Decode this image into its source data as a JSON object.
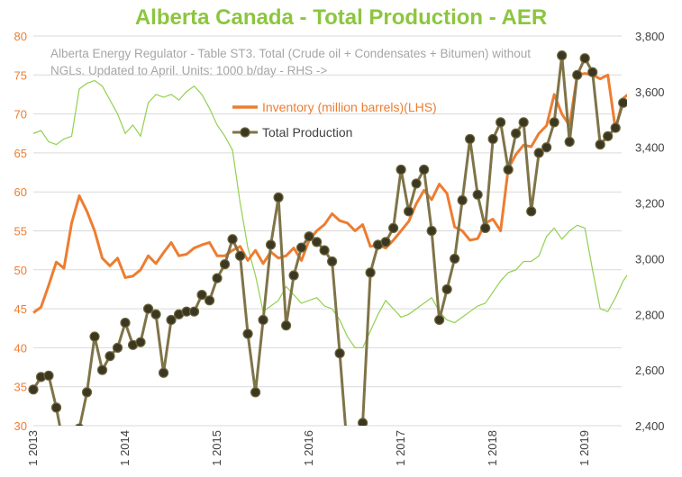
{
  "chart_data": {
    "type": "line",
    "title": "Alberta Canada - Total Production - AER",
    "subtitle": "Alberta Energy Regulator - Table ST3. Total (Crude oil + Condensates + Bitumen) without NGLs. Updated to April. Units: 1000 b/day - RHS ->",
    "x_tick_labels": [
      "1 2013",
      "1 2014",
      "1 2015",
      "1 2016",
      "1 2017",
      "1 2018",
      "1 2019"
    ],
    "x_range": [
      2013.0,
      2019.4
    ],
    "y_left": {
      "range": [
        30,
        80
      ],
      "ticks": [
        30,
        35,
        40,
        45,
        50,
        55,
        60,
        65,
        70,
        75,
        80
      ],
      "color": "#ed7d31"
    },
    "y_right": {
      "range": [
        2400,
        3800
      ],
      "ticks": [
        2400,
        2600,
        2800,
        3000,
        3200,
        3400,
        3600,
        3800
      ],
      "tick_labels": [
        "2,400",
        "2,600",
        "2,800",
        "3,000",
        "3,200",
        "3,400",
        "3,600",
        "3,800"
      ]
    },
    "grid": true,
    "legend_position": "upper-center",
    "colors": {
      "inventory": "#ed7d31",
      "production": "#7f7348",
      "production_marker": "#3b3722",
      "other": "#92d050",
      "title": "#8cc63f",
      "grid": "#d9d9d9"
    },
    "series": [
      {
        "name": "Inventory (million barrels)(LHS)",
        "axis": "left",
        "values": [
          44.5,
          45.2,
          48.0,
          51.0,
          50.2,
          56.0,
          59.5,
          57.5,
          55.0,
          51.5,
          50.5,
          51.5,
          49.0,
          49.2,
          50.0,
          51.8,
          50.8,
          52.2,
          53.5,
          51.8,
          52.0,
          52.8,
          53.2,
          53.5,
          51.8,
          51.8,
          52.5,
          53.0,
          51.2,
          52.5,
          50.8,
          52.3,
          51.5,
          51.8,
          52.8,
          51.2,
          53.8,
          55.0,
          55.8,
          57.2,
          56.3,
          56.0,
          55.0,
          55.8,
          53.0,
          53.2,
          52.8,
          53.8,
          55.0,
          56.2,
          58.5,
          60.2,
          59.0,
          61.0,
          59.8,
          55.5,
          55.0,
          53.8,
          54.0,
          56.0,
          56.5,
          55.0,
          63.0,
          64.8,
          66.0,
          65.8,
          67.5,
          68.5,
          72.5,
          70.0,
          68.5,
          75.0,
          75.2,
          75.0,
          74.5,
          75.0,
          68.0,
          72.0,
          72.8,
          75.5
        ]
      },
      {
        "name": "Total Production",
        "axis": "right",
        "values": [
          2530,
          2575,
          2580,
          2465,
          2320,
          2340,
          2390,
          2520,
          2720,
          2600,
          2650,
          2680,
          2770,
          2690,
          2700,
          2820,
          2800,
          2590,
          2780,
          2800,
          2810,
          2810,
          2870,
          2850,
          2930,
          2980,
          3070,
          3010,
          2730,
          2520,
          2780,
          3050,
          3220,
          2760,
          2940,
          3040,
          3080,
          3060,
          3030,
          2990,
          2660,
          2310,
          2200,
          2410,
          2950,
          3050,
          3060,
          3110,
          3320,
          3170,
          3270,
          3320,
          3100,
          2780,
          2890,
          3000,
          3210,
          3430,
          3230,
          3110,
          3430,
          3490,
          3320,
          3450,
          3490,
          3170,
          3380,
          3400,
          3490,
          3730,
          3420,
          3660,
          3720,
          3670,
          3410,
          3440,
          3470,
          3560
        ]
      },
      {
        "axis": "right",
        "values": [
          3450,
          3460,
          3420,
          3410,
          3430,
          3440,
          3610,
          3630,
          3640,
          3620,
          3570,
          3520,
          3450,
          3480,
          3440,
          3560,
          3590,
          3580,
          3590,
          3570,
          3600,
          3620,
          3590,
          3540,
          3480,
          3440,
          3390,
          3200,
          3040,
          2940,
          2810,
          2830,
          2850,
          2900,
          2870,
          2840,
          2850,
          2860,
          2830,
          2820,
          2780,
          2720,
          2680,
          2680,
          2740,
          2800,
          2850,
          2820,
          2790,
          2800,
          2820,
          2840,
          2860,
          2810,
          2780,
          2770,
          2790,
          2810,
          2830,
          2840,
          2880,
          2920,
          2950,
          2960,
          2990,
          2990,
          3010,
          3080,
          3110,
          3070,
          3100,
          3120,
          3110,
          2960,
          2820,
          2810,
          2860,
          2920,
          2960,
          3010
        ]
      }
    ]
  }
}
